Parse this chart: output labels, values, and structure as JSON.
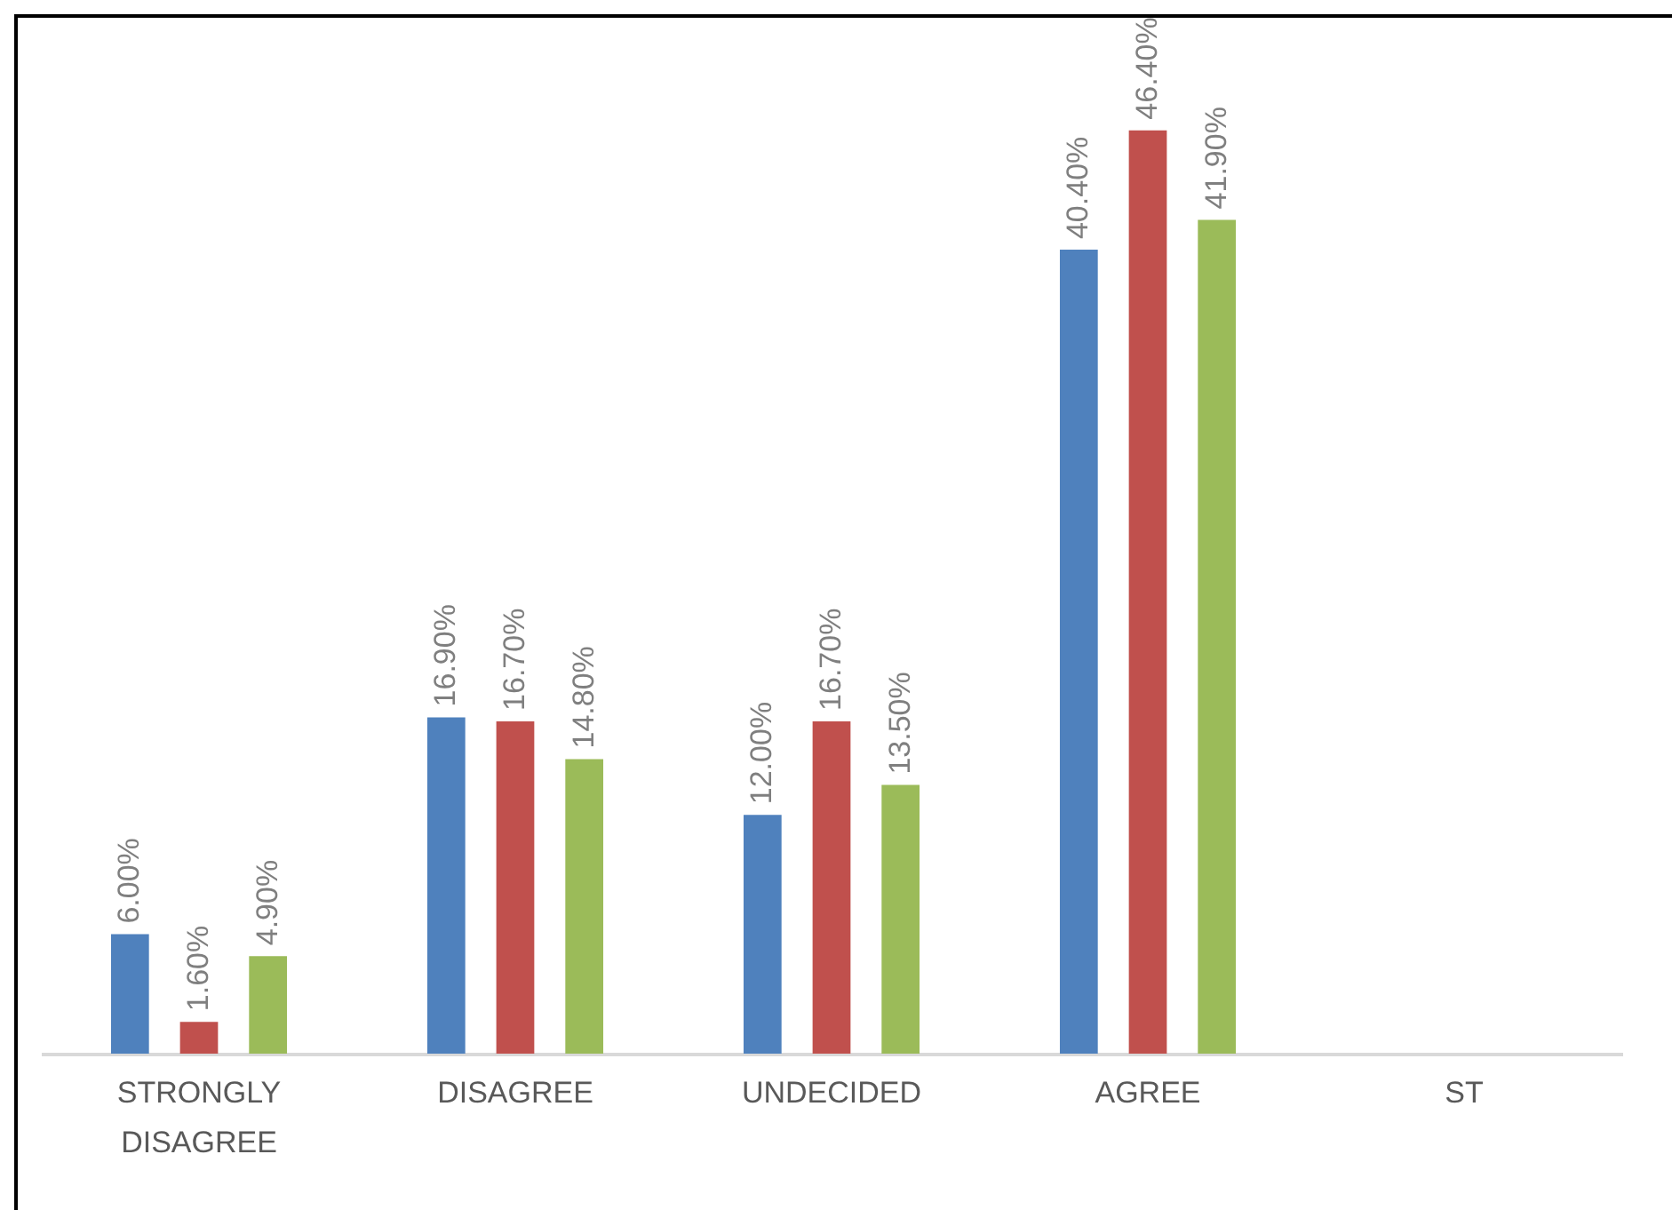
{
  "chart_data": {
    "type": "bar",
    "categories": [
      "STRONGLY DISAGREE",
      "DISAGREE",
      "UNDECIDED",
      "AGREE",
      "ST"
    ],
    "series": [
      {
        "color": "#4f81bd",
        "values": [
          6.0,
          16.9,
          12.0,
          40.4,
          null
        ],
        "value_labels": [
          "6.00%",
          "16.90%",
          "12.00%",
          "40.40%",
          null
        ]
      },
      {
        "color": "#c0504d",
        "values": [
          1.6,
          16.7,
          16.7,
          46.4,
          null
        ],
        "value_labels": [
          "1.60%",
          "16.70%",
          "16.70%",
          "46.40%",
          null
        ]
      },
      {
        "color": "#9bbb59",
        "values": [
          4.9,
          14.8,
          13.5,
          41.9,
          null
        ],
        "value_labels": [
          "4.90%",
          "14.80%",
          "13.50%",
          "41.90%",
          null
        ]
      }
    ],
    "tick_labels": "x"
  }
}
